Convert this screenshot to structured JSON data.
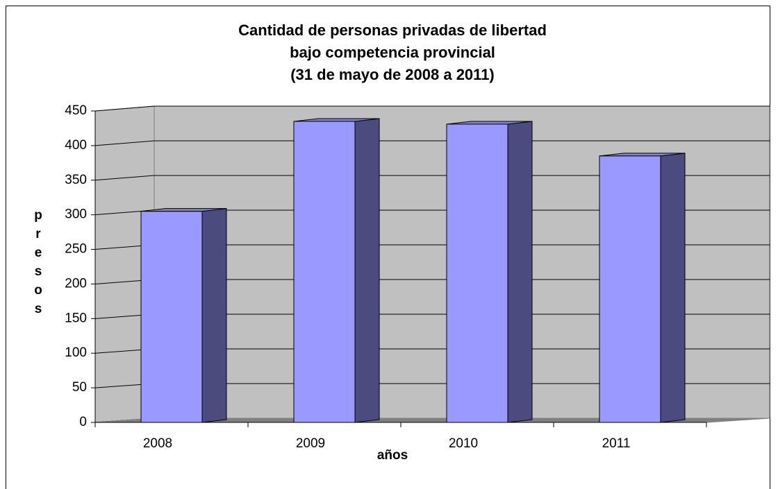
{
  "chart_data": {
    "type": "bar3d",
    "title": [
      "Cantidad de personas privadas de libertad",
      "bajo competencia provincial",
      "(31 de mayo de 2008 a 2011)"
    ],
    "x_label": "años",
    "y_label": "presos",
    "categories": [
      "2008",
      "2009",
      "2010",
      "2011"
    ],
    "values": [
      305,
      435,
      431,
      385
    ],
    "color": "#9999ff",
    "side_color": "#4b4b80",
    "top_color": "#8383d6",
    "wall_color": "#c0c0c0",
    "floor_color": "#808080",
    "ylim": [
      0,
      450
    ],
    "yticks": [
      0,
      50,
      100,
      150,
      200,
      250,
      300,
      350,
      400,
      450
    ],
    "grid": true
  }
}
